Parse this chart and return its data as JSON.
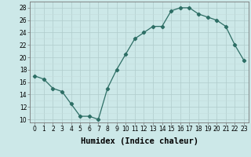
{
  "x": [
    0,
    1,
    2,
    3,
    4,
    5,
    6,
    7,
    8,
    9,
    10,
    11,
    12,
    13,
    14,
    15,
    16,
    17,
    18,
    19,
    20,
    21,
    22,
    23
  ],
  "y": [
    17,
    16.5,
    15,
    14.5,
    12.5,
    10.5,
    10.5,
    10,
    15,
    18,
    20.5,
    23,
    24,
    25,
    25,
    27.5,
    28,
    28,
    27,
    26.5,
    26,
    25,
    22,
    19.5
  ],
  "line_color": "#2d6e65",
  "marker": "D",
  "marker_size": 2.2,
  "bg_color": "#cce8e8",
  "grid_color_major": "#b0cccc",
  "grid_color_minor": "#c4dcdc",
  "xlabel": "Humidex (Indice chaleur)",
  "xlim": [
    -0.5,
    23.5
  ],
  "ylim": [
    9.5,
    29
  ],
  "yticks": [
    10,
    12,
    14,
    16,
    18,
    20,
    22,
    24,
    26,
    28
  ],
  "xticks": [
    0,
    1,
    2,
    3,
    4,
    5,
    6,
    7,
    8,
    9,
    10,
    11,
    12,
    13,
    14,
    15,
    16,
    17,
    18,
    19,
    20,
    21,
    22,
    23
  ],
  "tick_label_fontsize": 5.5,
  "xlabel_fontsize": 7.5
}
